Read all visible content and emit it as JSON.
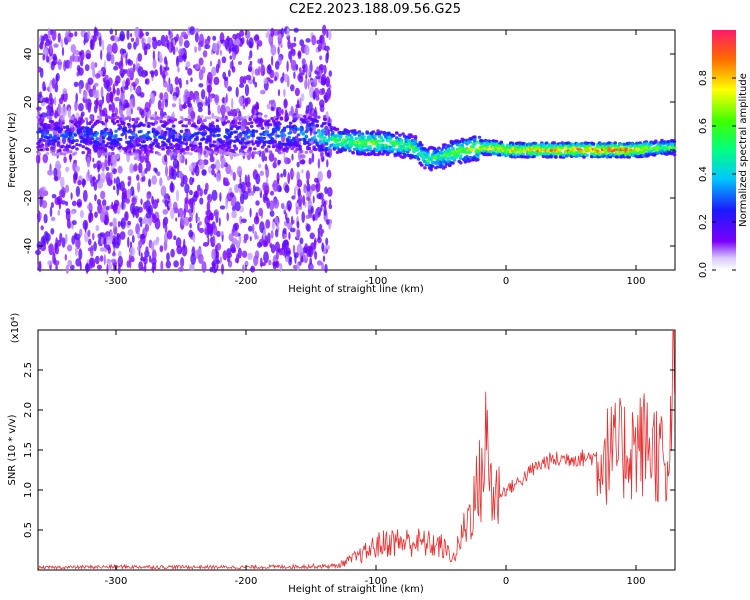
{
  "title": "C2E2.2023.188.09.56.G25",
  "colors": {
    "snr_line": "#e83030",
    "spectrogram_low": "#6a00e8",
    "spectrogram_high": "#ff2a6a"
  },
  "colorbar": {
    "label": "Normalized spectral amplitude",
    "range": [
      0.0,
      1.0
    ],
    "ticks": [
      "0.0",
      "0.2",
      "0.4",
      "0.6",
      "0.8"
    ],
    "colormap": "rainbow"
  },
  "chart_data": [
    {
      "type": "heatmap",
      "title": "",
      "xlabel": "Height of straight line (km)",
      "ylabel": "Frequency (Hz)",
      "xlim": [
        -360,
        130
      ],
      "ylim": [
        -50,
        50
      ],
      "xticks": [
        "-300",
        "-200",
        "-100",
        "0",
        "100"
      ],
      "yticks": [
        "-40",
        "-20",
        "0",
        "20",
        "40"
      ],
      "ridge": {
        "x": [
          -360,
          -300,
          -250,
          -200,
          -150,
          -130,
          -110,
          -90,
          -70,
          -60,
          -50,
          -40,
          -30,
          -20,
          -10,
          0,
          20,
          40,
          60,
          80,
          100,
          120,
          130
        ],
        "freq": [
          6,
          6,
          6,
          6,
          7,
          4,
          3,
          3,
          1,
          -4,
          -3,
          -1,
          0,
          1,
          1,
          0,
          0,
          0,
          0,
          0,
          0,
          1,
          1
        ],
        "amplitude": [
          0.3,
          0.35,
          0.3,
          0.3,
          0.4,
          0.6,
          0.7,
          0.65,
          0.6,
          0.55,
          0.6,
          0.7,
          0.75,
          0.8,
          0.85,
          0.85,
          0.9,
          0.95,
          1.0,
          1.0,
          0.95,
          0.7,
          0.6
        ]
      },
      "noise_region": [
        -360,
        -135
      ]
    },
    {
      "type": "line",
      "title": "",
      "xlabel": "Height of straight line (km)",
      "ylabel": "SNR (10 * v/v)",
      "y_multiplier": "(x10⁴)",
      "xlim": [
        -360,
        130
      ],
      "ylim": [
        0,
        30000
      ],
      "xticks": [
        "-300",
        "-200",
        "-100",
        "0",
        "100"
      ],
      "yticks": [
        "0.5",
        "1.0",
        "1.5",
        "2.0",
        "2.5"
      ],
      "envelope": {
        "x": [
          -360,
          -300,
          -200,
          -130,
          -110,
          -100,
          -90,
          -70,
          -50,
          -40,
          -30,
          -20,
          -15,
          -10,
          0,
          10,
          20,
          30,
          40,
          50,
          60,
          70,
          80,
          90,
          100,
          110,
          120,
          125,
          128,
          130
        ],
        "y": [
          300,
          400,
          350,
          500,
          2000,
          3000,
          3500,
          3500,
          3000,
          1500,
          6000,
          11000,
          16000,
          9000,
          10000,
          11000,
          12500,
          13500,
          13800,
          14000,
          14000,
          14200,
          14500,
          15000,
          15500,
          16000,
          14000,
          9000,
          26000,
          28500
        ]
      }
    }
  ]
}
